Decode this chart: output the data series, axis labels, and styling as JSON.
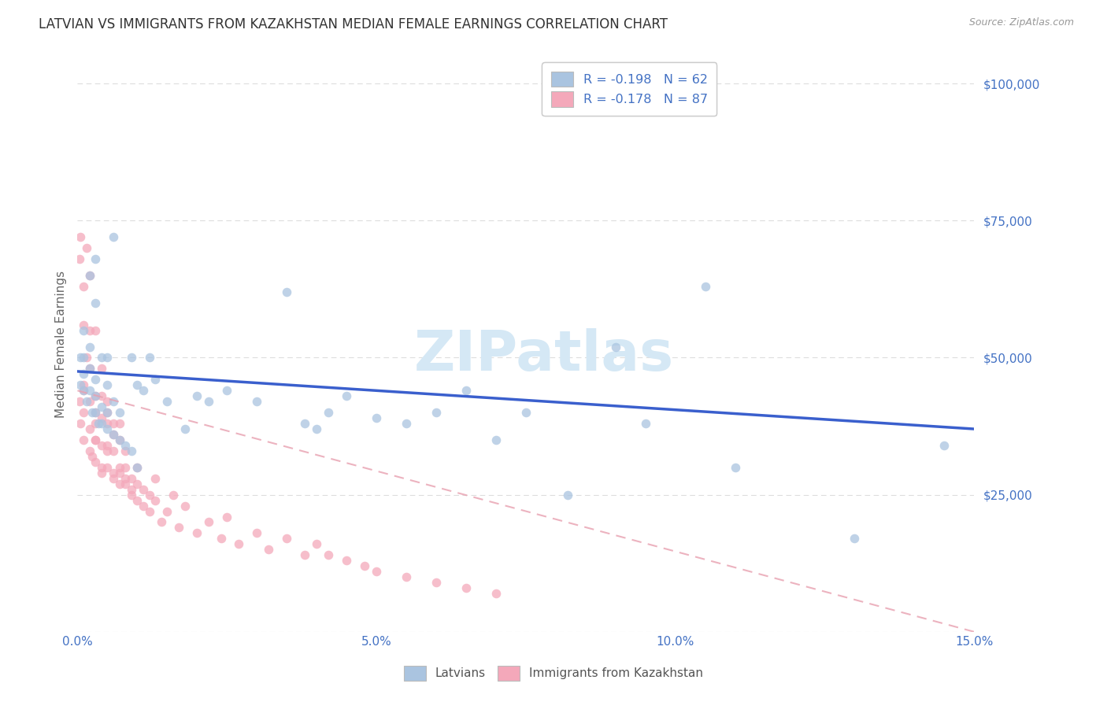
{
  "title": "LATVIAN VS IMMIGRANTS FROM KAZAKHSTAN MEDIAN FEMALE EARNINGS CORRELATION CHART",
  "source": "Source: ZipAtlas.com",
  "ylabel": "Median Female Earnings",
  "y_ticks": [
    0,
    25000,
    50000,
    75000,
    100000
  ],
  "y_tick_labels": [
    "",
    "$25,000",
    "$50,000",
    "$75,000",
    "$100,000"
  ],
  "xlim": [
    0.0,
    0.15
  ],
  "ylim": [
    0,
    105000
  ],
  "latvian_color": "#aac4e0",
  "kazakh_color": "#f4a8ba",
  "latvian_line_color": "#3a5fcd",
  "kazakh_line_color": "#e8a0b0",
  "tick_color": "#4472c4",
  "legend_R_color": "#4472c4",
  "legend_N_color": "#4472c4",
  "watermark_text": "ZIPatlas",
  "watermark_color": "#d5e8f5",
  "legend_latvian_label": "R = -0.198   N = 62",
  "legend_kazakh_label": "R = -0.178   N = 87",
  "bottom_legend_latvian": "Latvians",
  "bottom_legend_kazakh": "Immigrants from Kazakhstan",
  "latvian_scatter_x": [
    0.0005,
    0.0005,
    0.001,
    0.001,
    0.001,
    0.001,
    0.0015,
    0.002,
    0.002,
    0.002,
    0.002,
    0.0025,
    0.003,
    0.003,
    0.003,
    0.003,
    0.003,
    0.0035,
    0.004,
    0.004,
    0.004,
    0.005,
    0.005,
    0.005,
    0.005,
    0.006,
    0.006,
    0.006,
    0.007,
    0.007,
    0.008,
    0.009,
    0.009,
    0.01,
    0.01,
    0.011,
    0.012,
    0.013,
    0.015,
    0.018,
    0.02,
    0.022,
    0.025,
    0.03,
    0.035,
    0.038,
    0.04,
    0.042,
    0.045,
    0.05,
    0.055,
    0.06,
    0.065,
    0.07,
    0.075,
    0.082,
    0.09,
    0.095,
    0.105,
    0.11,
    0.13,
    0.145
  ],
  "latvian_scatter_y": [
    45000,
    50000,
    47000,
    50000,
    55000,
    44000,
    42000,
    44000,
    48000,
    52000,
    65000,
    40000,
    40000,
    43000,
    46000,
    60000,
    68000,
    38000,
    38000,
    41000,
    50000,
    37000,
    40000,
    45000,
    50000,
    36000,
    42000,
    72000,
    35000,
    40000,
    34000,
    33000,
    50000,
    30000,
    45000,
    44000,
    50000,
    46000,
    42000,
    37000,
    43000,
    42000,
    44000,
    42000,
    62000,
    38000,
    37000,
    40000,
    43000,
    39000,
    38000,
    40000,
    44000,
    35000,
    40000,
    25000,
    52000,
    38000,
    63000,
    30000,
    17000,
    34000
  ],
  "kazakh_scatter_x": [
    0.0003,
    0.0003,
    0.0005,
    0.0005,
    0.001,
    0.001,
    0.001,
    0.001,
    0.001,
    0.001,
    0.0015,
    0.0015,
    0.002,
    0.002,
    0.002,
    0.002,
    0.002,
    0.002,
    0.0025,
    0.003,
    0.003,
    0.003,
    0.003,
    0.003,
    0.003,
    0.003,
    0.004,
    0.004,
    0.004,
    0.004,
    0.004,
    0.004,
    0.005,
    0.005,
    0.005,
    0.005,
    0.005,
    0.005,
    0.006,
    0.006,
    0.006,
    0.006,
    0.006,
    0.007,
    0.007,
    0.007,
    0.007,
    0.007,
    0.008,
    0.008,
    0.008,
    0.008,
    0.009,
    0.009,
    0.009,
    0.01,
    0.01,
    0.01,
    0.011,
    0.011,
    0.012,
    0.012,
    0.013,
    0.013,
    0.014,
    0.015,
    0.016,
    0.017,
    0.018,
    0.02,
    0.022,
    0.024,
    0.025,
    0.027,
    0.03,
    0.032,
    0.035,
    0.038,
    0.04,
    0.042,
    0.045,
    0.048,
    0.05,
    0.055,
    0.06,
    0.065,
    0.07
  ],
  "kazakh_scatter_y": [
    42000,
    68000,
    38000,
    72000,
    44000,
    56000,
    63000,
    35000,
    40000,
    45000,
    50000,
    70000,
    33000,
    37000,
    42000,
    48000,
    65000,
    55000,
    32000,
    35000,
    38000,
    43000,
    55000,
    31000,
    35000,
    40000,
    48000,
    30000,
    34000,
    39000,
    43000,
    29000,
    33000,
    38000,
    42000,
    30000,
    34000,
    40000,
    29000,
    33000,
    38000,
    28000,
    36000,
    30000,
    38000,
    27000,
    35000,
    29000,
    28000,
    33000,
    27000,
    30000,
    26000,
    28000,
    25000,
    27000,
    24000,
    30000,
    26000,
    23000,
    25000,
    22000,
    28000,
    24000,
    20000,
    22000,
    25000,
    19000,
    23000,
    18000,
    20000,
    17000,
    21000,
    16000,
    18000,
    15000,
    17000,
    14000,
    16000,
    14000,
    13000,
    12000,
    11000,
    10000,
    9000,
    8000,
    7000
  ],
  "latvian_trend_x": [
    0.0,
    0.15
  ],
  "latvian_trend_y": [
    47500,
    37000
  ],
  "kazakh_trend_x": [
    0.0,
    0.15
  ],
  "kazakh_trend_y": [
    44000,
    0
  ],
  "background_color": "#ffffff",
  "grid_color": "#dddddd",
  "title_color": "#333333",
  "title_fontsize": 12,
  "axis_label_color": "#666666"
}
